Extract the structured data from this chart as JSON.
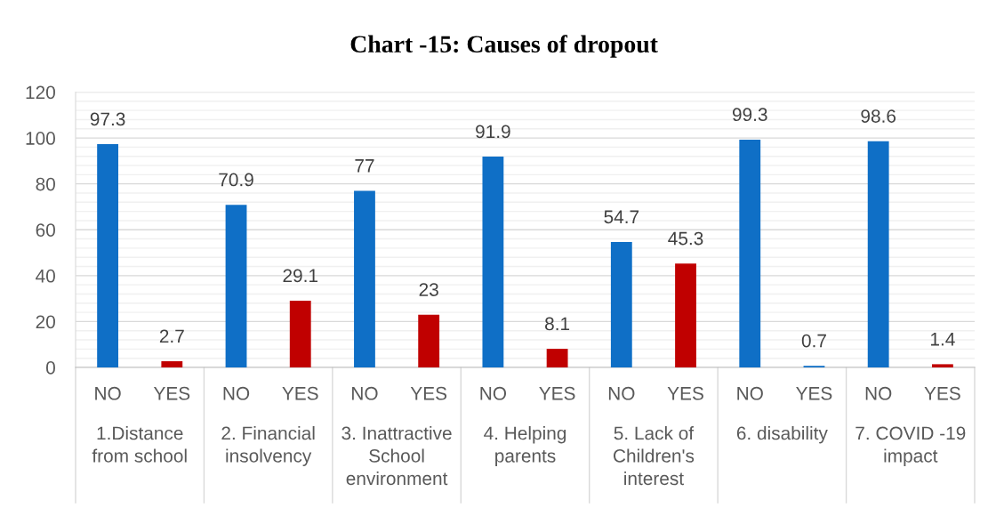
{
  "chart_data": {
    "type": "bar",
    "title": "Chart -15: Causes of dropout",
    "categories": [
      "1.Distance from school",
      "2. Financial insolvency",
      "3. Inattractive School environment",
      "4. Helping parents",
      "5. Lack of Children's interest",
      "6. disability",
      "7. COVID -19 impact"
    ],
    "series": [
      {
        "name": "NO",
        "color": "#0f6fc6",
        "values": [
          97.3,
          70.9,
          77,
          91.9,
          54.7,
          99.3,
          98.6
        ]
      },
      {
        "name": "YES",
        "color": "#c00000",
        "colors": [
          null,
          null,
          null,
          null,
          null,
          "#0f6fc6",
          null
        ],
        "values": [
          2.7,
          29.1,
          23,
          8.1,
          45.3,
          0.7,
          1.4
        ]
      }
    ],
    "ylim": [
      0,
      120
    ],
    "yticks": [
      0,
      20,
      40,
      60,
      80,
      100,
      120
    ],
    "grid": "y",
    "data_labels": true,
    "legend": false
  }
}
